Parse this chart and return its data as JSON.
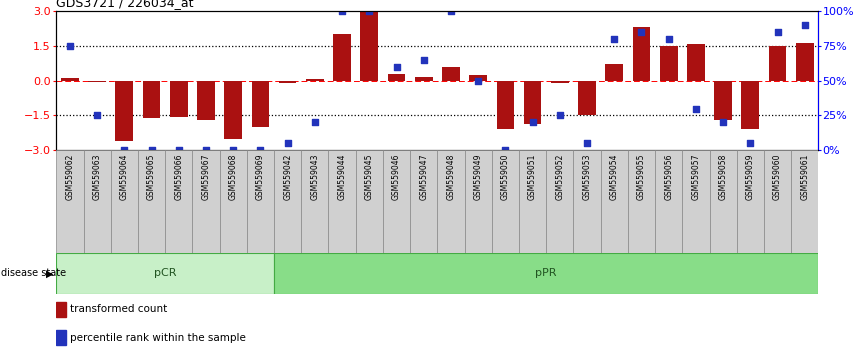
{
  "title": "GDS3721 / 226034_at",
  "samples": [
    "GSM559062",
    "GSM559063",
    "GSM559064",
    "GSM559065",
    "GSM559066",
    "GSM559067",
    "GSM559068",
    "GSM559069",
    "GSM559042",
    "GSM559043",
    "GSM559044",
    "GSM559045",
    "GSM559046",
    "GSM559047",
    "GSM559048",
    "GSM559049",
    "GSM559050",
    "GSM559051",
    "GSM559052",
    "GSM559053",
    "GSM559054",
    "GSM559055",
    "GSM559056",
    "GSM559057",
    "GSM559058",
    "GSM559059",
    "GSM559060",
    "GSM559061"
  ],
  "bar_values": [
    0.1,
    -0.05,
    -2.6,
    -1.6,
    -1.55,
    -1.7,
    -2.5,
    -2.0,
    -0.1,
    0.05,
    2.0,
    2.95,
    0.3,
    0.15,
    0.6,
    0.25,
    -2.1,
    -1.85,
    -0.1,
    -1.5,
    0.7,
    2.3,
    1.5,
    1.55,
    -1.7,
    -2.1,
    1.5,
    1.6
  ],
  "percentile_values": [
    75,
    25,
    0,
    0,
    0,
    0,
    0,
    0,
    5,
    20,
    100,
    100,
    60,
    65,
    100,
    50,
    0,
    20,
    25,
    5,
    80,
    85,
    80,
    30,
    20,
    5,
    85,
    90
  ],
  "pCR_count": 8,
  "pPR_count": 20,
  "bar_color": "#aa1111",
  "dot_color": "#2233bb",
  "pCR_color": "#c8f0c8",
  "pPR_color": "#88dd88",
  "label_bg": "#d0d0d0",
  "ylim": [
    -3,
    3
  ],
  "yticks": [
    -3,
    -1.5,
    0,
    1.5,
    3
  ],
  "right_yticks": [
    0,
    25,
    50,
    75,
    100
  ],
  "right_yticklabels": [
    "0%",
    "25%",
    "50%",
    "75%",
    "100%"
  ]
}
